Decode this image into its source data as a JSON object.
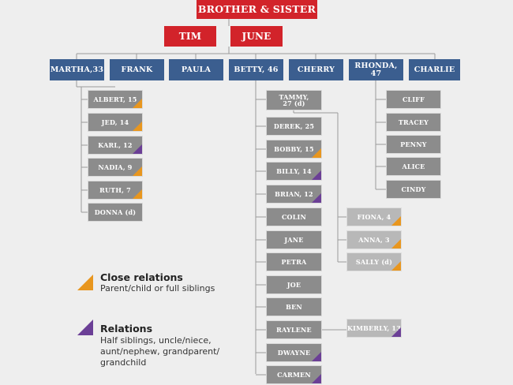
{
  "top": {
    "title": "BROTHER & SISTER"
  },
  "parents": [
    "TIM",
    "JUNE"
  ],
  "children": [
    "MARTHA,33",
    "FRANK",
    "PAULA",
    "BETTY, 46",
    "CHERRY",
    "RHONDA, 47",
    "CHARLIE"
  ],
  "martha_kids": [
    {
      "label": "ALBERT, 15",
      "relation": "close"
    },
    {
      "label": "JED, 14",
      "relation": "close"
    },
    {
      "label": "KARL, 12",
      "relation": "relation"
    },
    {
      "label": "NADIA, 9",
      "relation": "close"
    },
    {
      "label": "RUTH, 7",
      "relation": "close"
    },
    {
      "label": "DONNA (d)",
      "relation": "none"
    }
  ],
  "betty_kids": [
    {
      "label": "TAMMY, 27 (d)",
      "relation": "none"
    },
    {
      "label": "DEREK, 25",
      "relation": "none"
    },
    {
      "label": "BOBBY, 15",
      "relation": "close"
    },
    {
      "label": "BILLY, 14",
      "relation": "relation"
    },
    {
      "label": "BRIAN, 12",
      "relation": "relation"
    },
    {
      "label": "COLIN",
      "relation": "none"
    },
    {
      "label": "JANE",
      "relation": "none"
    },
    {
      "label": "PETRA",
      "relation": "none"
    },
    {
      "label": "JOE",
      "relation": "none"
    },
    {
      "label": "BEN",
      "relation": "none"
    },
    {
      "label": "RAYLENE",
      "relation": "none"
    },
    {
      "label": "DWAYNE",
      "relation": "relation"
    },
    {
      "label": "CARMEN",
      "relation": "relation"
    }
  ],
  "tammy_kids": [
    {
      "label": "FIONA, 4",
      "relation": "close"
    },
    {
      "label": "ANNA, 3",
      "relation": "close"
    },
    {
      "label": "SALLY (d)",
      "relation": "close"
    }
  ],
  "raylene_kids": [
    {
      "label": "KIMBERLY, 13",
      "relation": "relation"
    }
  ],
  "rhonda_kids": [
    "CLIFF",
    "TRACEY",
    "PENNY",
    "ALICE",
    "CINDY"
  ],
  "legend": {
    "close_title": "Close relations",
    "close_desc": "Parent/child or full siblings",
    "rel_title": "Relations",
    "rel_desc": "Half siblings, uncle/niece, aunt/nephew, grandparent/ grandchild"
  },
  "colors": {
    "red": "#d2232a",
    "blue": "#3b5e8f",
    "gray": "#8c8c8c",
    "light_gray": "#b8b8b8",
    "close": "#e8961e",
    "relation": "#6b3f96"
  }
}
